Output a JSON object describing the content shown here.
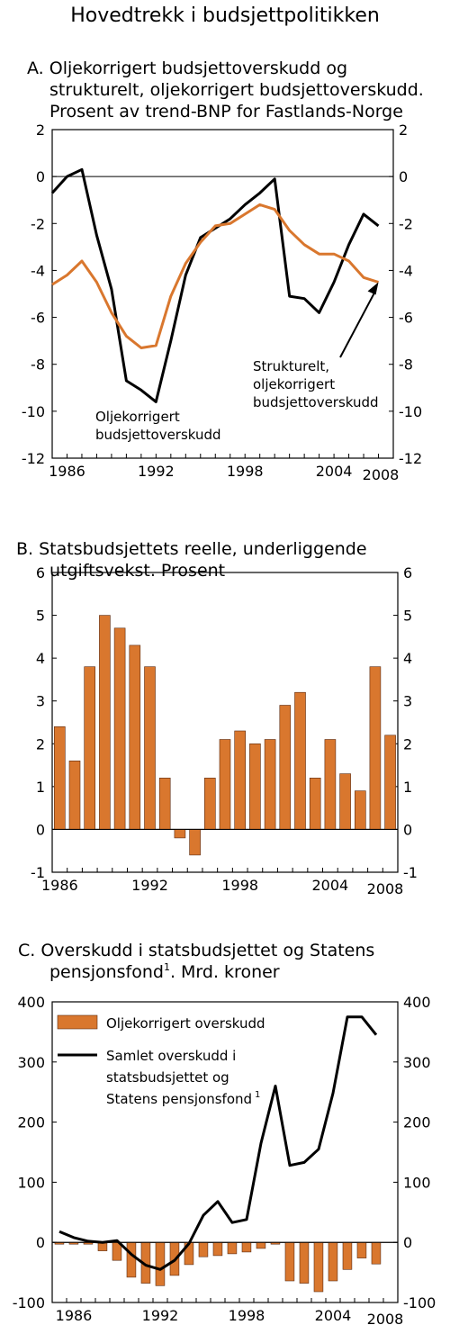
{
  "page_title": "Hovedtrekk i budsjettpolitikken",
  "colors": {
    "orange": "#d9772e",
    "orange_edge": "#5a2a10",
    "black": "#000000"
  },
  "chart_data": [
    {
      "id": "A",
      "type": "line",
      "title_lines": [
        "A. Oljekorrigert budsjettoverskudd og",
        "strukturelt, oljekorrigert budsjettoverskudd.",
        "Prosent av trend-BNP for Fastlands-Norge"
      ],
      "x": [
        1985,
        1986,
        1987,
        1988,
        1989,
        1990,
        1991,
        1992,
        1993,
        1994,
        1995,
        1996,
        1997,
        1998,
        1999,
        2000,
        2001,
        2002,
        2003,
        2004,
        2005,
        2006,
        2007,
        2008
      ],
      "x_ticks": [
        1986,
        1992,
        1998,
        2004,
        2008
      ],
      "xlim": [
        1985,
        2008
      ],
      "ylim": [
        -12,
        2
      ],
      "y_ticks": [
        2,
        0,
        -2,
        -4,
        -6,
        -8,
        -10,
        -12
      ],
      "series": [
        {
          "name": "Oljekorrigert budsjettoverskudd",
          "color": "#000000",
          "values": [
            -0.7,
            0.0,
            0.3,
            -2.5,
            -4.8,
            -8.7,
            -9.1,
            -9.6,
            -7.0,
            -4.2,
            -2.6,
            -2.2,
            -1.8,
            -1.2,
            -0.7,
            -0.1,
            -5.1,
            -5.2,
            -5.8,
            -4.5,
            -2.9,
            -1.6,
            -2.1,
            null
          ]
        },
        {
          "name": "Strukturelt, oljekorrigert budsjettoverskudd",
          "color": "#d9772e",
          "values": [
            -4.6,
            -4.2,
            -3.6,
            -4.5,
            -5.8,
            -6.8,
            -7.3,
            -7.2,
            -5.1,
            -3.7,
            -2.8,
            -2.1,
            -2.0,
            -1.6,
            -1.2,
            -1.4,
            -2.3,
            -2.9,
            -3.3,
            -3.3,
            -3.6,
            -4.3,
            -4.5,
            null
          ]
        }
      ],
      "annotations": [
        {
          "lines": [
            "Oljekorrigert",
            "budsjettoverskudd"
          ]
        },
        {
          "lines": [
            "Strukturelt,",
            "oljekorrigert",
            "budsjettoverskudd"
          ]
        }
      ]
    },
    {
      "id": "B",
      "type": "bar",
      "title_lines": [
        "B.  Statsbudsjettets reelle, underliggende",
        "utgiftsvekst. Prosent"
      ],
      "categories": [
        1986,
        1987,
        1988,
        1989,
        1990,
        1991,
        1992,
        1993,
        1994,
        1995,
        1996,
        1997,
        1998,
        1999,
        2000,
        2001,
        2002,
        2003,
        2004,
        2005,
        2006,
        2007,
        2008
      ],
      "values": [
        2.4,
        1.6,
        3.8,
        5.0,
        4.7,
        4.3,
        3.8,
        1.2,
        -0.2,
        -0.6,
        1.2,
        2.1,
        2.3,
        2.0,
        2.1,
        2.9,
        3.2,
        1.2,
        2.1,
        1.3,
        0.9,
        3.8,
        2.2
      ],
      "x_ticks": [
        1986,
        1992,
        1998,
        2004,
        2008
      ],
      "ylim": [
        -1,
        6
      ],
      "y_ticks": [
        6,
        5,
        4,
        3,
        2,
        1,
        0,
        -1
      ]
    },
    {
      "id": "C",
      "type": "bar",
      "title_lines": [
        "C.  Overskudd i statsbudsjettet og  Statens",
        "pensjonsfond",
        ". Mrd. kroner"
      ],
      "title_superscript": "1",
      "categories": [
        1985,
        1986,
        1987,
        1988,
        1989,
        1990,
        1991,
        1992,
        1993,
        1994,
        1995,
        1996,
        1997,
        1998,
        1999,
        2000,
        2001,
        2002,
        2003,
        2004,
        2005,
        2006,
        2007,
        2008
      ],
      "x_ticks": [
        1986,
        1992,
        1998,
        2004,
        2008
      ],
      "ylim": [
        -100,
        400
      ],
      "y_ticks": [
        400,
        300,
        200,
        100,
        0,
        -100
      ],
      "series": [
        {
          "name": "Oljekorrigert overskudd",
          "type": "bar",
          "color": "#d9772e",
          "values": [
            -2,
            -2,
            -3,
            -14,
            -30,
            -58,
            -68,
            -72,
            -55,
            -37,
            -24,
            -22,
            -19,
            -16,
            -10,
            -3,
            -64,
            -68,
            -82,
            -64,
            -45,
            -26,
            -36,
            null
          ]
        },
        {
          "name": "Samlet overskudd i statsbudsjettet og Statens pensjonsfond",
          "type": "line",
          "color": "#000000",
          "legend_lines": [
            "Samlet overskudd i",
            "statsbudsjettet og",
            "Statens pensjonsfond"
          ],
          "legend_superscript": "1",
          "values": [
            18,
            8,
            2,
            0,
            3,
            -20,
            -38,
            -45,
            -30,
            -2,
            45,
            68,
            33,
            38,
            165,
            260,
            128,
            133,
            155,
            248,
            375,
            375,
            345,
            null
          ]
        }
      ]
    }
  ]
}
